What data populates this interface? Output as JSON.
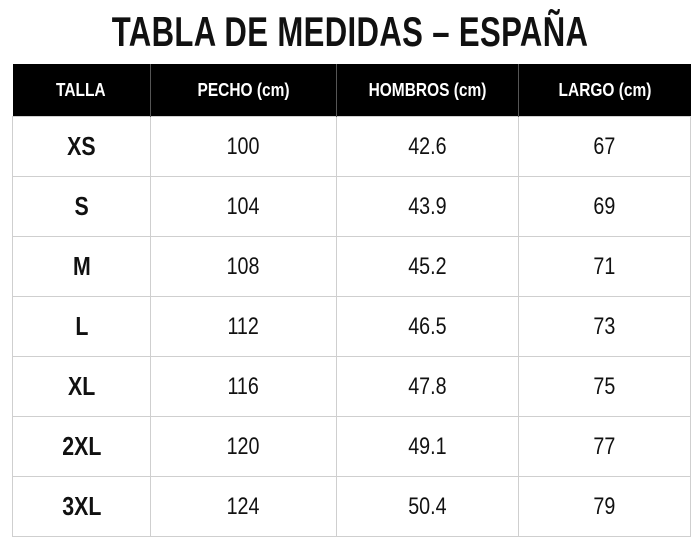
{
  "title": "TABLA DE MEDIDAS – ESPAÑA",
  "table": {
    "header": [
      "TALLA",
      "PECHO (cm)",
      "HOMBROS (cm)",
      "LARGO (cm)"
    ],
    "rows": [
      [
        "XS",
        "100",
        "42.6",
        "67"
      ],
      [
        "S",
        "104",
        "43.9",
        "69"
      ],
      [
        "M",
        "108",
        "45.2",
        "71"
      ],
      [
        "L",
        "112",
        "46.5",
        "73"
      ],
      [
        "XL",
        "116",
        "47.8",
        "75"
      ],
      [
        "2XL",
        "120",
        "49.1",
        "77"
      ],
      [
        "3XL",
        "124",
        "50.4",
        "79"
      ]
    ]
  }
}
